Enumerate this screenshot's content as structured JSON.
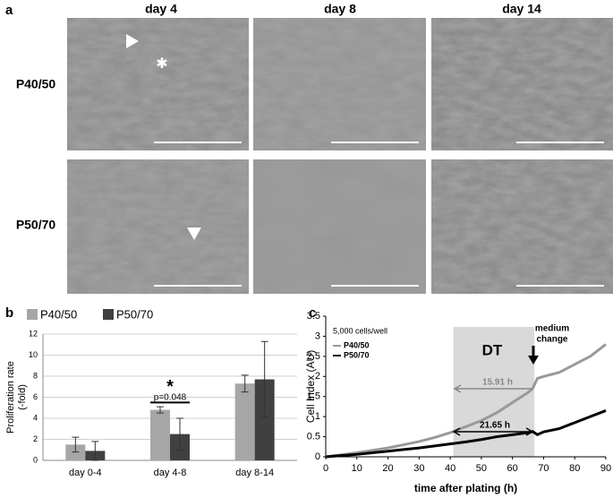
{
  "panel_a": {
    "label": "a",
    "columns": [
      "day 4",
      "day 8",
      "day 14"
    ],
    "rows": [
      "P40/50",
      "P50/70"
    ]
  },
  "chart_data": [
    {
      "type": "bar",
      "panel_label": "b",
      "ylabel": [
        "Proliferation rate",
        "(-fold)"
      ],
      "categories": [
        "day 0-4",
        "day 4-8",
        "day 8-14"
      ],
      "series": [
        {
          "name": "P40/50",
          "color": "#a6a6a6",
          "values": [
            1.5,
            4.8,
            7.3
          ],
          "errors": [
            0.7,
            0.3,
            0.8
          ]
        },
        {
          "name": "P50/70",
          "color": "#404040",
          "values": [
            0.9,
            2.5,
            7.7
          ],
          "errors": [
            0.9,
            1.5,
            3.6
          ]
        }
      ],
      "ylim": [
        0,
        12
      ],
      "yticks": [
        0,
        2,
        4,
        6,
        8,
        10,
        12
      ],
      "grid": true,
      "annotations": [
        "*",
        "p=0.048"
      ]
    },
    {
      "type": "line",
      "panel_label": "c",
      "xlabel": "time after plating (h)",
      "ylabel": "Cell Index (AU)",
      "legend_title": "5,000 cells/well",
      "x": [
        0,
        5,
        10,
        15,
        20,
        25,
        30,
        35,
        40,
        45,
        50,
        55,
        60,
        65,
        66.5,
        68,
        70,
        75,
        80,
        85,
        90
      ],
      "series": [
        {
          "name": "P40/50",
          "color": "#999999",
          "values": [
            0,
            0.05,
            0.1,
            0.16,
            0.22,
            0.3,
            0.38,
            0.48,
            0.6,
            0.75,
            0.9,
            1.1,
            1.35,
            1.6,
            1.7,
            1.95,
            2.0,
            2.1,
            2.3,
            2.5,
            2.8
          ]
        },
        {
          "name": "P50/70",
          "color": "#000000",
          "values": [
            0,
            0.03,
            0.06,
            0.1,
            0.14,
            0.18,
            0.22,
            0.27,
            0.32,
            0.37,
            0.43,
            0.5,
            0.55,
            0.6,
            0.63,
            0.55,
            0.62,
            0.7,
            0.85,
            1.0,
            1.15
          ]
        }
      ],
      "xlim": [
        0,
        90
      ],
      "xticks": [
        0,
        10,
        20,
        30,
        40,
        50,
        60,
        70,
        80,
        90
      ],
      "ylim": [
        0,
        3.5
      ],
      "yticks": [
        0,
        0.5,
        1,
        1.5,
        2,
        2.5,
        3,
        3.5
      ],
      "shaded_region": [
        41,
        67
      ],
      "annotations": [
        "DT",
        "medium",
        "change",
        "15.91 h",
        "21.65 h"
      ]
    }
  ]
}
